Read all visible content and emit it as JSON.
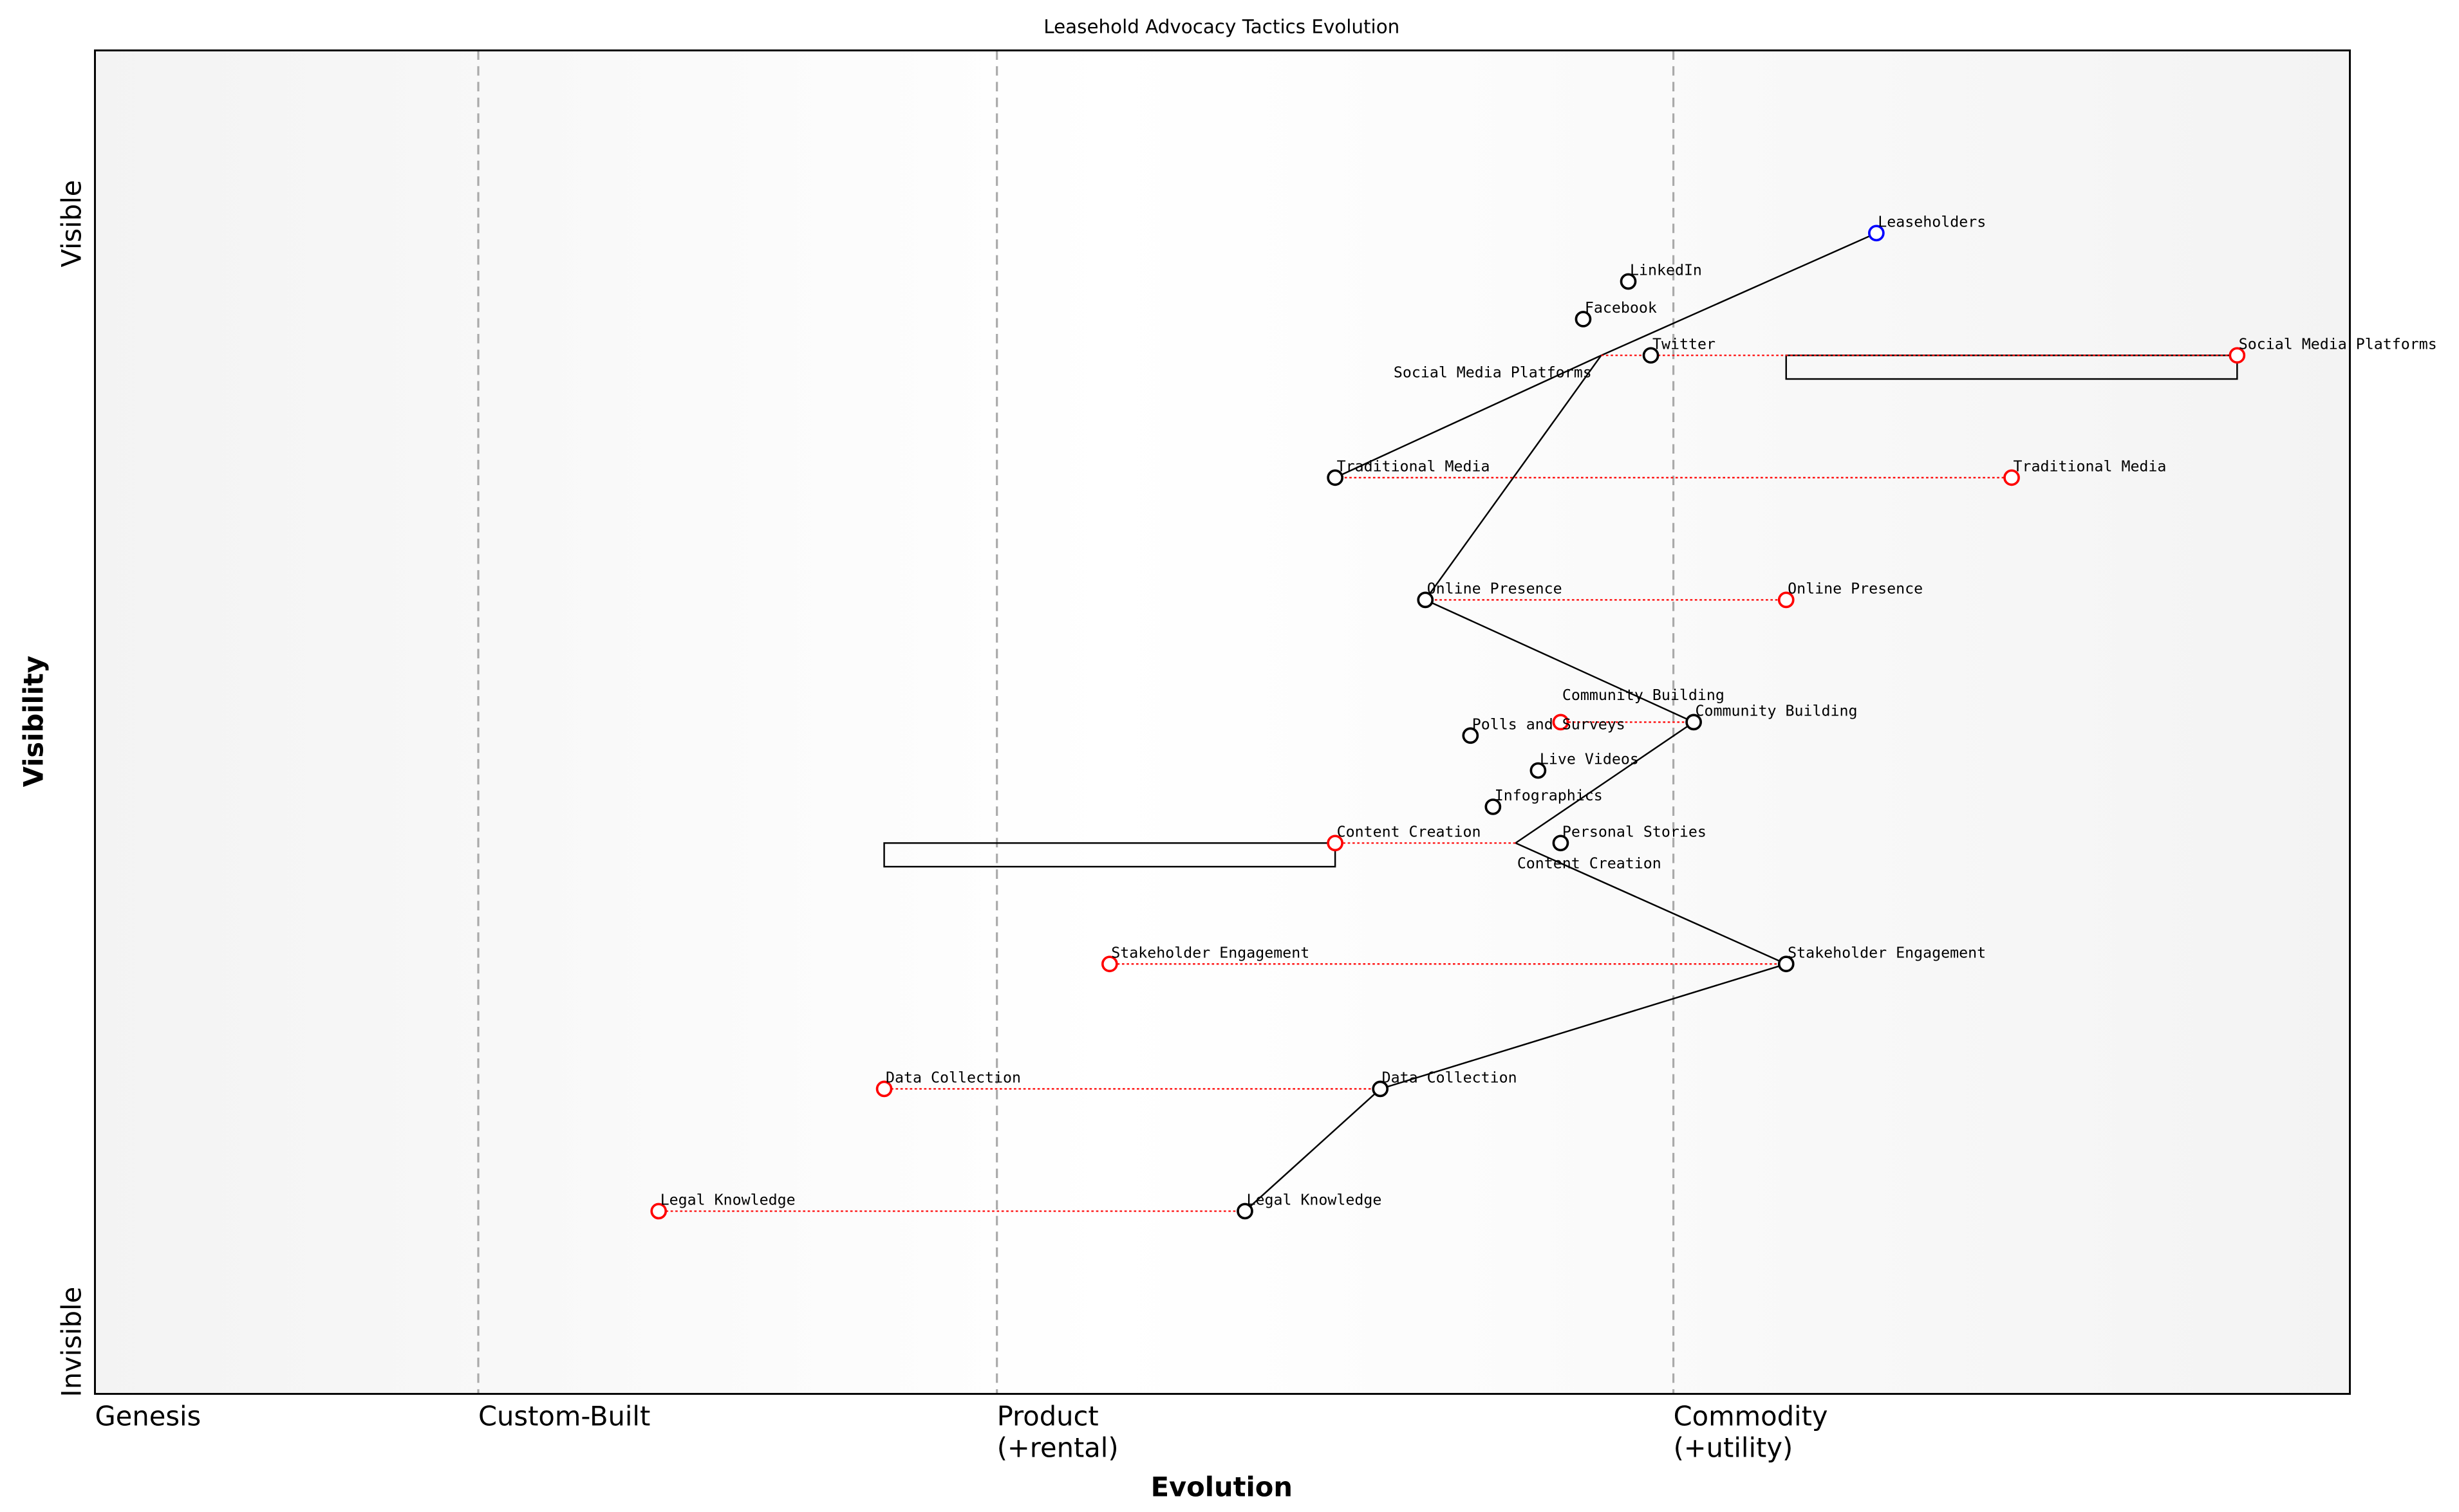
{
  "title": "Leasehold Advocacy Tactics Evolution",
  "x_axis": {
    "label": "Evolution",
    "stages": [
      {
        "label": [
          "Genesis"
        ],
        "at": 0
      },
      {
        "label": [
          "Custom-Built"
        ],
        "at": 0.17
      },
      {
        "label": [
          "Product",
          "(+rental)"
        ],
        "at": 0.4
      },
      {
        "label": [
          "Commodity",
          "(+utility)"
        ],
        "at": 0.7
      }
    ]
  },
  "y_axis": {
    "label": "Visibility",
    "top": "Visible",
    "bottom": "Invisible"
  },
  "colors": {
    "component": "#000000",
    "anchor": "#0000ff",
    "evolve": "#ff0000",
    "stage_line": "#aaaaaa"
  },
  "components": [
    {
      "name": "Leaseholders",
      "evolution": 0.79,
      "visibility": 0.864,
      "type": "anchor"
    },
    {
      "name": "LinkedIn",
      "evolution": 0.68,
      "visibility": 0.828
    },
    {
      "name": "Facebook",
      "evolution": 0.66,
      "visibility": 0.8
    },
    {
      "name": "Social Media Platforms",
      "evolution": 0.668,
      "visibility": 0.773,
      "marker": "none"
    },
    {
      "name": "Twitter",
      "evolution": 0.69,
      "visibility": 0.773
    },
    {
      "name": "Traditional Media",
      "evolution": 0.55,
      "visibility": 0.682
    },
    {
      "name": "Online Presence",
      "evolution": 0.59,
      "visibility": 0.591
    },
    {
      "name": "Community Building",
      "evolution": 0.709,
      "visibility": 0.5
    },
    {
      "name": "Polls and Surveys",
      "evolution": 0.61,
      "visibility": 0.49
    },
    {
      "name": "Live Videos",
      "evolution": 0.64,
      "visibility": 0.464
    },
    {
      "name": "Infographics",
      "evolution": 0.62,
      "visibility": 0.437
    },
    {
      "name": "Content Creation",
      "evolution": 0.63,
      "visibility": 0.41,
      "marker": "none"
    },
    {
      "name": "Personal Stories",
      "evolution": 0.65,
      "visibility": 0.41
    },
    {
      "name": "Stakeholder Engagement",
      "evolution": 0.75,
      "visibility": 0.32
    },
    {
      "name": "Data Collection",
      "evolution": 0.57,
      "visibility": 0.227
    },
    {
      "name": "Legal Knowledge",
      "evolution": 0.51,
      "visibility": 0.136
    }
  ],
  "evolutions": [
    {
      "name": "Social Media Platforms",
      "from": 0.668,
      "to": 0.95,
      "visibility": 0.773
    },
    {
      "name": "Traditional Media",
      "from": 0.55,
      "to": 0.85,
      "visibility": 0.682
    },
    {
      "name": "Online Presence",
      "from": 0.59,
      "to": 0.75,
      "visibility": 0.591
    },
    {
      "name": "Community Building",
      "from": 0.709,
      "to": 0.65,
      "visibility": 0.5
    },
    {
      "name": "Content Creation",
      "from": 0.63,
      "to": 0.55,
      "visibility": 0.41
    },
    {
      "name": "Stakeholder Engagement",
      "from": 0.75,
      "to": 0.45,
      "visibility": 0.32
    },
    {
      "name": "Data Collection",
      "from": 0.57,
      "to": 0.35,
      "visibility": 0.227
    },
    {
      "name": "Legal Knowledge",
      "from": 0.51,
      "to": 0.25,
      "visibility": 0.136
    }
  ],
  "pipelines": [
    {
      "name": "Social Media Platforms",
      "from": 0.75,
      "to": 0.95,
      "visibility": 0.773
    },
    {
      "name": "Content Creation",
      "from": 0.35,
      "to": 0.55,
      "visibility": 0.41
    }
  ],
  "links": [
    [
      "Leaseholders",
      "Social Media Platforms"
    ],
    [
      "Social Media Platforms",
      "Traditional Media"
    ],
    [
      "Social Media Platforms",
      "Online Presence"
    ],
    [
      "Online Presence",
      "Community Building"
    ],
    [
      "Community Building",
      "Content Creation"
    ],
    [
      "Content Creation",
      "Stakeholder Engagement"
    ],
    [
      "Stakeholder Engagement",
      "Data Collection"
    ],
    [
      "Data Collection",
      "Legal Knowledge"
    ]
  ]
}
